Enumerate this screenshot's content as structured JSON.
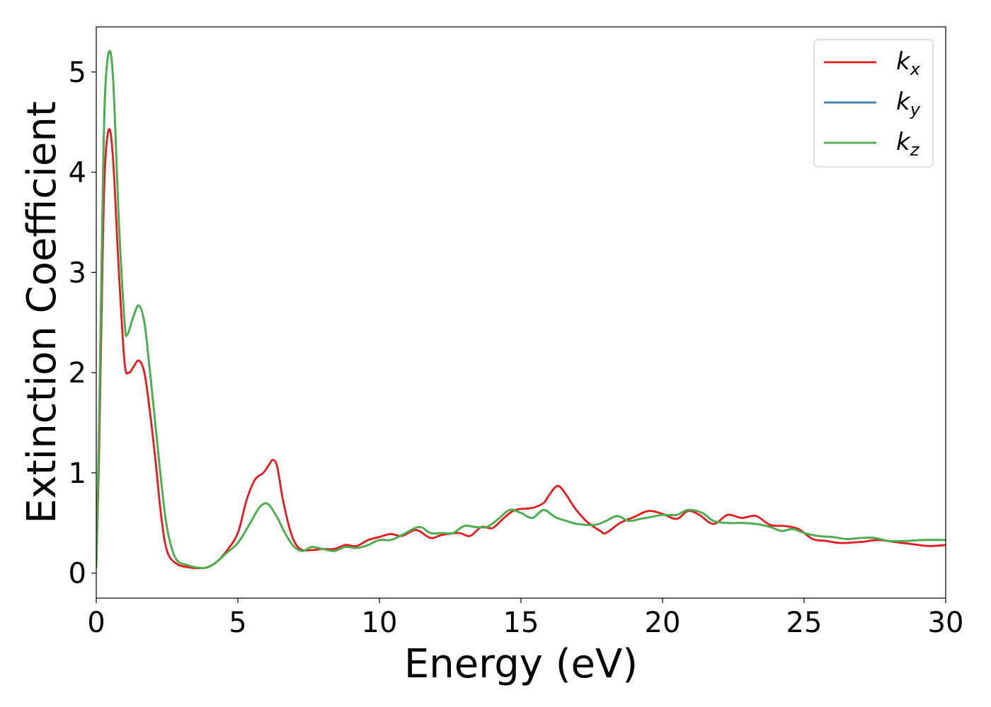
{
  "chart_data": {
    "type": "line",
    "title": "",
    "xlabel": "Energy (eV)",
    "ylabel": "Extinction Coefficient",
    "xlim": [
      0,
      30
    ],
    "ylim": [
      -0.25,
      5.45
    ],
    "xticks": [
      0,
      5,
      10,
      15,
      20,
      25,
      30
    ],
    "yticks": [
      0,
      1,
      2,
      3,
      4,
      5
    ],
    "grid": false,
    "legend_position": "top-right",
    "series": [
      {
        "name": "k",
        "subscript": "x",
        "color": "#e41a1c",
        "points": [
          [
            0,
            0.05
          ],
          [
            0.1,
            1.2
          ],
          [
            0.2,
            2.8
          ],
          [
            0.3,
            4.0
          ],
          [
            0.45,
            4.43
          ],
          [
            0.6,
            4.1
          ],
          [
            0.8,
            3.0
          ],
          [
            1.0,
            2.1
          ],
          [
            1.15,
            2.0
          ],
          [
            1.3,
            2.05
          ],
          [
            1.5,
            2.12
          ],
          [
            1.7,
            2.0
          ],
          [
            1.9,
            1.6
          ],
          [
            2.1,
            1.1
          ],
          [
            2.3,
            0.55
          ],
          [
            2.5,
            0.22
          ],
          [
            2.8,
            0.1
          ],
          [
            3.2,
            0.06
          ],
          [
            3.8,
            0.05
          ],
          [
            4.2,
            0.1
          ],
          [
            4.6,
            0.22
          ],
          [
            5.0,
            0.4
          ],
          [
            5.3,
            0.72
          ],
          [
            5.6,
            0.93
          ],
          [
            5.9,
            1.0
          ],
          [
            6.1,
            1.08
          ],
          [
            6.25,
            1.13
          ],
          [
            6.4,
            1.05
          ],
          [
            6.6,
            0.72
          ],
          [
            6.9,
            0.38
          ],
          [
            7.2,
            0.24
          ],
          [
            7.6,
            0.23
          ],
          [
            8.0,
            0.24
          ],
          [
            8.4,
            0.24
          ],
          [
            8.8,
            0.28
          ],
          [
            9.2,
            0.27
          ],
          [
            9.6,
            0.33
          ],
          [
            10.0,
            0.36
          ],
          [
            10.4,
            0.39
          ],
          [
            10.8,
            0.37
          ],
          [
            11.3,
            0.43
          ],
          [
            11.8,
            0.35
          ],
          [
            12.2,
            0.38
          ],
          [
            12.8,
            0.4
          ],
          [
            13.2,
            0.37
          ],
          [
            13.6,
            0.46
          ],
          [
            14.0,
            0.45
          ],
          [
            14.4,
            0.55
          ],
          [
            14.8,
            0.63
          ],
          [
            15.4,
            0.65
          ],
          [
            15.8,
            0.7
          ],
          [
            16.0,
            0.78
          ],
          [
            16.3,
            0.87
          ],
          [
            16.6,
            0.78
          ],
          [
            16.9,
            0.65
          ],
          [
            17.3,
            0.52
          ],
          [
            17.8,
            0.42
          ],
          [
            18.0,
            0.4
          ],
          [
            18.5,
            0.5
          ],
          [
            19.0,
            0.56
          ],
          [
            19.5,
            0.62
          ],
          [
            20.0,
            0.59
          ],
          [
            20.5,
            0.54
          ],
          [
            20.9,
            0.62
          ],
          [
            21.3,
            0.58
          ],
          [
            21.8,
            0.49
          ],
          [
            22.3,
            0.58
          ],
          [
            22.8,
            0.55
          ],
          [
            23.3,
            0.57
          ],
          [
            23.8,
            0.48
          ],
          [
            24.3,
            0.47
          ],
          [
            24.8,
            0.44
          ],
          [
            25.3,
            0.34
          ],
          [
            25.8,
            0.32
          ],
          [
            26.3,
            0.3
          ],
          [
            27.0,
            0.31
          ],
          [
            27.6,
            0.33
          ],
          [
            28.2,
            0.31
          ],
          [
            28.8,
            0.29
          ],
          [
            29.4,
            0.27
          ],
          [
            30.0,
            0.28
          ]
        ]
      },
      {
        "name": "k",
        "subscript": "y",
        "color": "#377eb8",
        "points": [
          [
            0,
            0.05
          ],
          [
            0.1,
            1.5
          ],
          [
            0.2,
            3.3
          ],
          [
            0.3,
            4.7
          ],
          [
            0.45,
            5.2
          ],
          [
            0.6,
            4.9
          ],
          [
            0.8,
            3.5
          ],
          [
            1.0,
            2.5
          ],
          [
            1.1,
            2.38
          ],
          [
            1.3,
            2.55
          ],
          [
            1.5,
            2.67
          ],
          [
            1.7,
            2.5
          ],
          [
            1.9,
            2.0
          ],
          [
            2.1,
            1.45
          ],
          [
            2.3,
            0.9
          ],
          [
            2.5,
            0.45
          ],
          [
            2.8,
            0.15
          ],
          [
            3.2,
            0.08
          ],
          [
            3.8,
            0.05
          ],
          [
            4.2,
            0.1
          ],
          [
            4.6,
            0.2
          ],
          [
            5.0,
            0.3
          ],
          [
            5.4,
            0.48
          ],
          [
            5.7,
            0.63
          ],
          [
            5.9,
            0.69
          ],
          [
            6.1,
            0.68
          ],
          [
            6.4,
            0.55
          ],
          [
            6.7,
            0.38
          ],
          [
            7.0,
            0.26
          ],
          [
            7.3,
            0.22
          ],
          [
            7.6,
            0.26
          ],
          [
            8.0,
            0.24
          ],
          [
            8.4,
            0.22
          ],
          [
            8.8,
            0.26
          ],
          [
            9.2,
            0.25
          ],
          [
            9.6,
            0.28
          ],
          [
            10.0,
            0.33
          ],
          [
            10.4,
            0.33
          ],
          [
            10.8,
            0.38
          ],
          [
            11.4,
            0.46
          ],
          [
            11.8,
            0.4
          ],
          [
            12.2,
            0.4
          ],
          [
            12.6,
            0.4
          ],
          [
            13.0,
            0.47
          ],
          [
            13.4,
            0.46
          ],
          [
            13.8,
            0.46
          ],
          [
            14.2,
            0.54
          ],
          [
            14.6,
            0.63
          ],
          [
            15.0,
            0.6
          ],
          [
            15.4,
            0.55
          ],
          [
            15.8,
            0.63
          ],
          [
            16.2,
            0.56
          ],
          [
            16.6,
            0.52
          ],
          [
            17.0,
            0.49
          ],
          [
            17.6,
            0.48
          ],
          [
            18.0,
            0.52
          ],
          [
            18.4,
            0.57
          ],
          [
            18.8,
            0.52
          ],
          [
            19.2,
            0.54
          ],
          [
            19.6,
            0.56
          ],
          [
            20.0,
            0.58
          ],
          [
            20.5,
            0.58
          ],
          [
            20.9,
            0.63
          ],
          [
            21.4,
            0.6
          ],
          [
            21.8,
            0.52
          ],
          [
            22.3,
            0.5
          ],
          [
            22.8,
            0.5
          ],
          [
            23.3,
            0.49
          ],
          [
            23.8,
            0.46
          ],
          [
            24.2,
            0.42
          ],
          [
            24.6,
            0.44
          ],
          [
            25.0,
            0.4
          ],
          [
            25.5,
            0.37
          ],
          [
            26.0,
            0.36
          ],
          [
            26.5,
            0.34
          ],
          [
            27.0,
            0.35
          ],
          [
            27.5,
            0.35
          ],
          [
            28.0,
            0.32
          ],
          [
            28.6,
            0.32
          ],
          [
            29.2,
            0.33
          ],
          [
            30.0,
            0.33
          ]
        ]
      },
      {
        "name": "k",
        "subscript": "z",
        "color": "#4daf4a",
        "points": [
          [
            0,
            0.05
          ],
          [
            0.1,
            1.5
          ],
          [
            0.2,
            3.3
          ],
          [
            0.3,
            4.7
          ],
          [
            0.45,
            5.2
          ],
          [
            0.6,
            4.9
          ],
          [
            0.8,
            3.5
          ],
          [
            1.0,
            2.5
          ],
          [
            1.1,
            2.38
          ],
          [
            1.3,
            2.55
          ],
          [
            1.5,
            2.67
          ],
          [
            1.7,
            2.5
          ],
          [
            1.9,
            2.0
          ],
          [
            2.1,
            1.45
          ],
          [
            2.3,
            0.9
          ],
          [
            2.5,
            0.45
          ],
          [
            2.8,
            0.15
          ],
          [
            3.2,
            0.08
          ],
          [
            3.8,
            0.05
          ],
          [
            4.2,
            0.1
          ],
          [
            4.6,
            0.2
          ],
          [
            5.0,
            0.3
          ],
          [
            5.4,
            0.48
          ],
          [
            5.7,
            0.63
          ],
          [
            5.9,
            0.69
          ],
          [
            6.1,
            0.68
          ],
          [
            6.4,
            0.55
          ],
          [
            6.7,
            0.38
          ],
          [
            7.0,
            0.26
          ],
          [
            7.3,
            0.22
          ],
          [
            7.6,
            0.26
          ],
          [
            8.0,
            0.24
          ],
          [
            8.4,
            0.22
          ],
          [
            8.8,
            0.26
          ],
          [
            9.2,
            0.25
          ],
          [
            9.6,
            0.28
          ],
          [
            10.0,
            0.33
          ],
          [
            10.4,
            0.33
          ],
          [
            10.8,
            0.38
          ],
          [
            11.4,
            0.46
          ],
          [
            11.8,
            0.4
          ],
          [
            12.2,
            0.4
          ],
          [
            12.6,
            0.4
          ],
          [
            13.0,
            0.47
          ],
          [
            13.4,
            0.46
          ],
          [
            13.8,
            0.46
          ],
          [
            14.2,
            0.54
          ],
          [
            14.6,
            0.63
          ],
          [
            15.0,
            0.6
          ],
          [
            15.4,
            0.55
          ],
          [
            15.8,
            0.63
          ],
          [
            16.2,
            0.56
          ],
          [
            16.6,
            0.52
          ],
          [
            17.0,
            0.49
          ],
          [
            17.6,
            0.48
          ],
          [
            18.0,
            0.52
          ],
          [
            18.4,
            0.57
          ],
          [
            18.8,
            0.52
          ],
          [
            19.2,
            0.54
          ],
          [
            19.6,
            0.56
          ],
          [
            20.0,
            0.58
          ],
          [
            20.5,
            0.58
          ],
          [
            20.9,
            0.63
          ],
          [
            21.4,
            0.6
          ],
          [
            21.8,
            0.52
          ],
          [
            22.3,
            0.5
          ],
          [
            22.8,
            0.5
          ],
          [
            23.3,
            0.49
          ],
          [
            23.8,
            0.46
          ],
          [
            24.2,
            0.42
          ],
          [
            24.6,
            0.44
          ],
          [
            25.0,
            0.4
          ],
          [
            25.5,
            0.37
          ],
          [
            26.0,
            0.36
          ],
          [
            26.5,
            0.34
          ],
          [
            27.0,
            0.35
          ],
          [
            27.5,
            0.35
          ],
          [
            28.0,
            0.32
          ],
          [
            28.6,
            0.32
          ],
          [
            29.2,
            0.33
          ],
          [
            30.0,
            0.33
          ]
        ]
      }
    ]
  }
}
